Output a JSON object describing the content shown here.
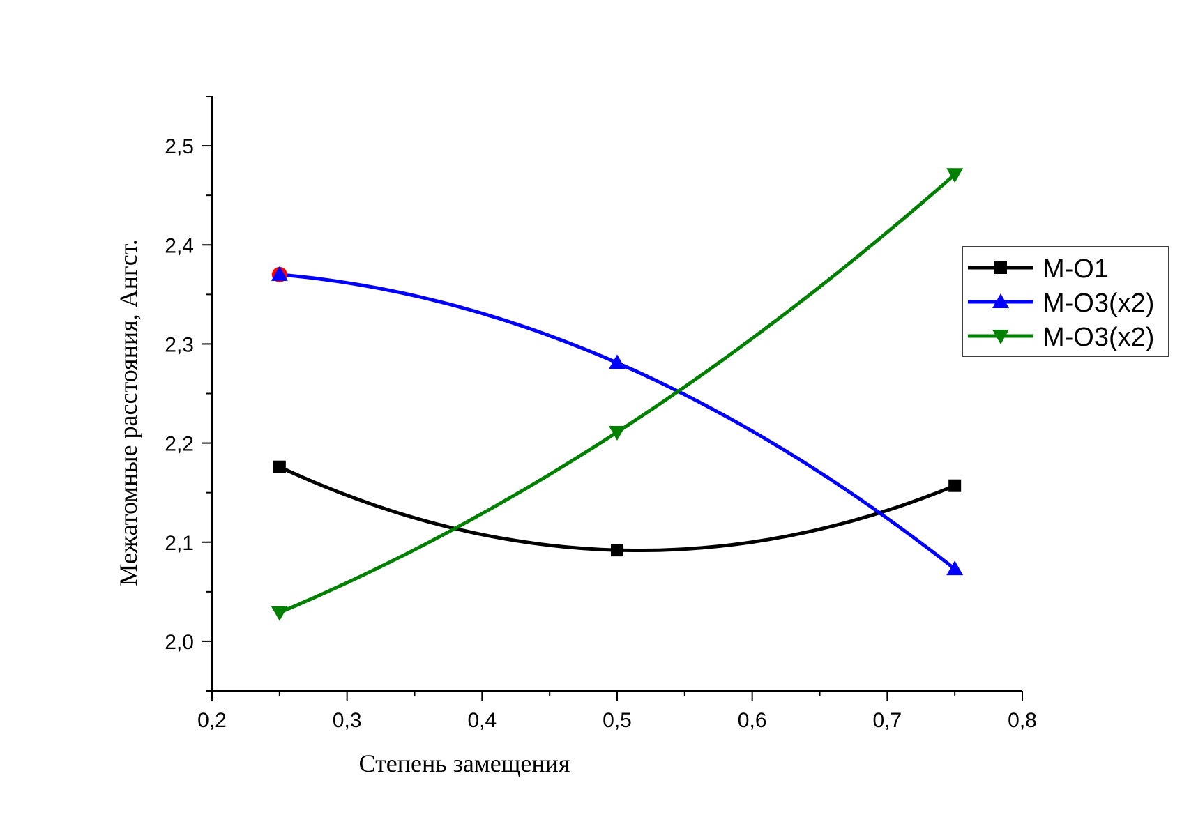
{
  "chart_data": {
    "type": "line",
    "xlabel": "Степень замещения",
    "ylabel": "Межатомные расстояния, Ангст.",
    "xlim": [
      0.2,
      0.8
    ],
    "ylim": [
      1.95,
      2.55
    ],
    "x_ticks": [
      "0,2",
      "0,3",
      "0,4",
      "0,5",
      "0,6",
      "0,7",
      "0,8"
    ],
    "y_ticks": [
      "2,0",
      "2,1",
      "2,2",
      "2,3",
      "2,4",
      "2,5"
    ],
    "grid": false,
    "legend_position": "right",
    "x": [
      0.25,
      0.5,
      0.75
    ],
    "series": [
      {
        "name": "M-O1",
        "marker": "square",
        "color": "#000000",
        "values": [
          2.176,
          2.092,
          2.157
        ]
      },
      {
        "name": "M-O3(x2)",
        "marker": "triangle-up",
        "color": "#0000ff",
        "values": [
          2.37,
          2.281,
          2.073
        ]
      },
      {
        "name": "M-O3(x2)",
        "marker": "triangle-down",
        "color": "#008000",
        "values": [
          2.029,
          2.211,
          2.471
        ]
      }
    ],
    "annotations": [
      {
        "type": "point-marker",
        "shape": "circle",
        "color": "#ff0000",
        "x": 0.25,
        "y": 2.37
      }
    ]
  }
}
